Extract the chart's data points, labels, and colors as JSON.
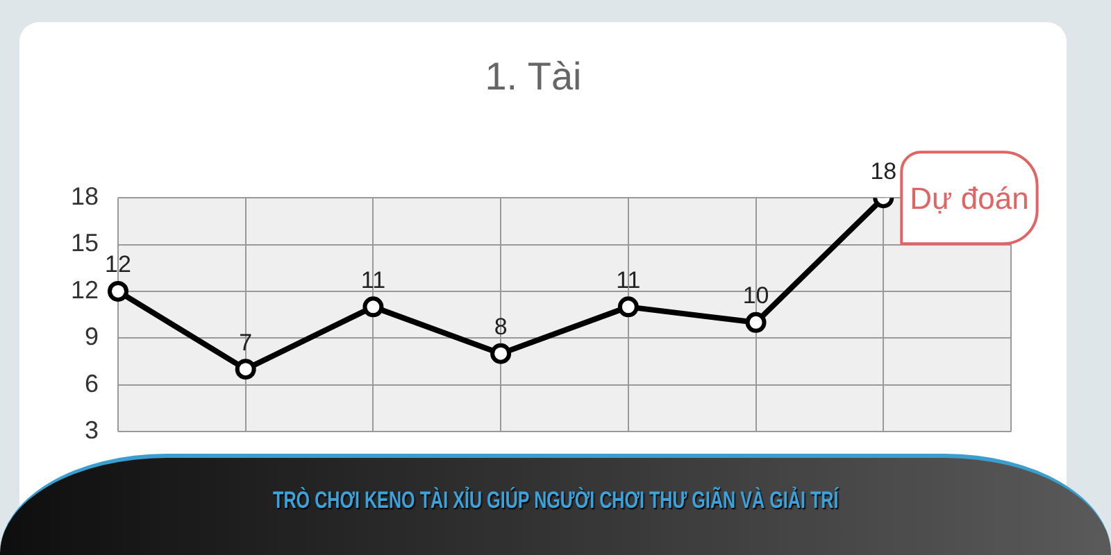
{
  "chart_data": {
    "type": "line",
    "title": "1. Tài",
    "categories": [
      null,
      null,
      null,
      null,
      null,
      null,
      null,
      null
    ],
    "values": [
      12,
      7,
      11,
      8,
      11,
      10,
      18,
      null
    ],
    "color": "#000000",
    "ylim": [
      3,
      18
    ],
    "yticks": [
      3,
      6,
      9,
      12,
      15,
      18
    ],
    "grid": true,
    "marker": "circle",
    "line_style": "solid",
    "data_labels": true,
    "annotations": [
      "Dự đoán",
      "TRÒ CHƠI KENO TÀI XỈU GIÚP NGƯỜI CHƠI THƯ GIÃN VÀ GIẢI TRÍ"
    ]
  }
}
